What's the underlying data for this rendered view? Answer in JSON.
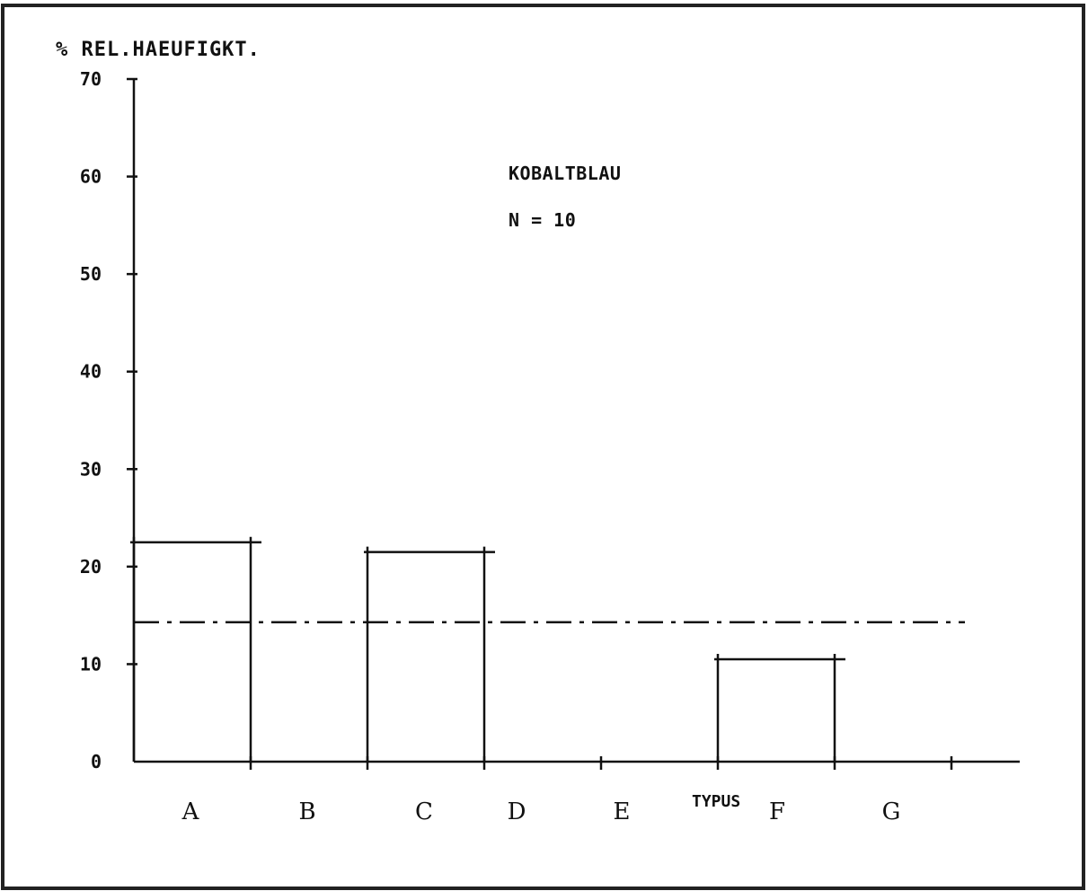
{
  "chart_data": {
    "type": "bar",
    "ylabel": "% REL.HAEUFIGKT.",
    "xlabel": "TYPUS",
    "annotations": [
      "KOBALTBLAU",
      "N = 10"
    ],
    "ylim": [
      0,
      70
    ],
    "yticks": [
      "0",
      "10",
      "20",
      "30",
      "40",
      "50",
      "60",
      "70"
    ],
    "categories": [
      "A",
      "B",
      "C",
      "D",
      "E",
      "F",
      "G"
    ],
    "values": [
      22.5,
      0,
      21.5,
      0,
      0,
      10.5,
      0
    ],
    "reference_line": {
      "value": 14.3,
      "style": "dash-dot"
    },
    "grid": false,
    "colors": {
      "ink": "#111111",
      "background": "#ffffff"
    }
  }
}
